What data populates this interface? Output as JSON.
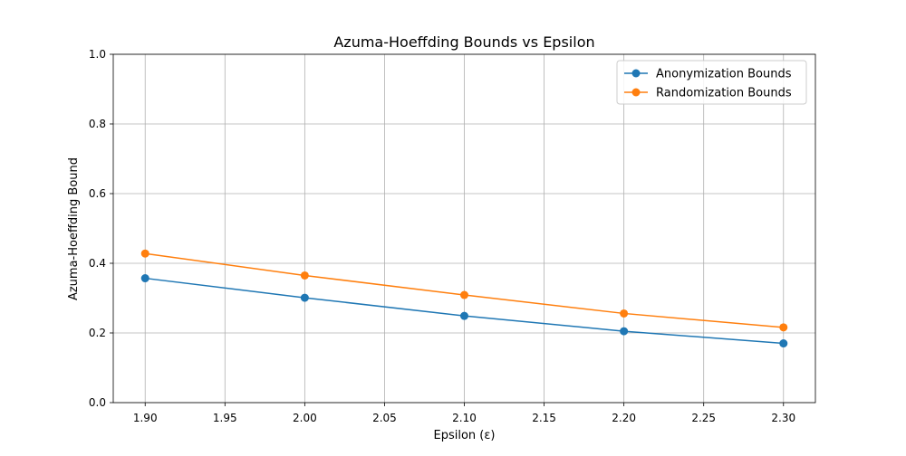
{
  "chart_data": {
    "type": "line",
    "title": "Azuma-Hoeffding Bounds vs Epsilon",
    "xlabel": "Epsilon (ε)",
    "ylabel": "Azuma-Hoeffding Bound",
    "x": [
      1.9,
      2.0,
      2.1,
      2.2,
      2.3
    ],
    "xlim": [
      1.88,
      2.32
    ],
    "ylim": [
      0.0,
      1.0
    ],
    "x_ticks": [
      1.9,
      1.95,
      2.0,
      2.05,
      2.1,
      2.15,
      2.2,
      2.25,
      2.3
    ],
    "x_tick_labels": [
      "1.90",
      "1.95",
      "2.00",
      "2.05",
      "2.10",
      "2.15",
      "2.20",
      "2.25",
      "2.30"
    ],
    "y_ticks": [
      0.0,
      0.2,
      0.4,
      0.6,
      0.8,
      1.0
    ],
    "y_tick_labels": [
      "0.0",
      "0.2",
      "0.4",
      "0.6",
      "0.8",
      "1.0"
    ],
    "grid": true,
    "legend_position": "top-right",
    "series": [
      {
        "name": "Anonymization Bounds",
        "color": "#1f77b4",
        "marker": "circle",
        "values": [
          0.357,
          0.301,
          0.249,
          0.205,
          0.17
        ]
      },
      {
        "name": "Randomization Bounds",
        "color": "#ff7f0e",
        "marker": "circle",
        "values": [
          0.428,
          0.365,
          0.309,
          0.256,
          0.216
        ]
      }
    ]
  }
}
